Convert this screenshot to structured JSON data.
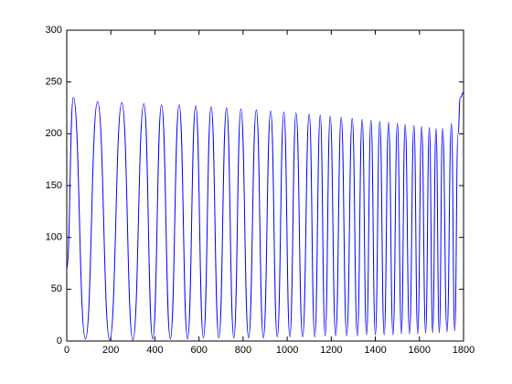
{
  "chart_data": {
    "type": "line",
    "x": [
      0,
      30,
      85,
      140,
      195,
      250,
      300,
      350,
      390,
      430,
      470,
      510,
      548,
      585,
      620,
      655,
      690,
      725,
      758,
      790,
      825,
      860,
      892,
      925,
      955,
      985,
      1012,
      1040,
      1070,
      1100,
      1125,
      1150,
      1172,
      1195,
      1220,
      1245,
      1270,
      1295,
      1318,
      1340,
      1360,
      1380,
      1400,
      1420,
      1440,
      1460,
      1480,
      1500,
      1518,
      1535,
      1555,
      1575,
      1592,
      1610,
      1628,
      1645,
      1660,
      1675,
      1690,
      1705,
      1725,
      1745,
      1760,
      1775,
      1785,
      1800
    ],
    "series": [
      {
        "color": "#0000ff",
        "values": [
          70,
          235,
          2,
          231,
          1,
          230,
          1,
          229,
          2,
          228,
          2,
          228,
          2,
          227,
          3,
          226,
          3,
          225,
          3,
          224,
          3,
          223,
          3,
          222,
          4,
          221,
          4,
          220,
          4,
          219,
          4,
          218,
          5,
          217,
          5,
          216,
          5,
          215,
          5,
          214,
          6,
          213,
          6,
          212,
          6,
          211,
          6,
          210,
          7,
          209,
          7,
          208,
          7,
          207,
          8,
          206,
          8,
          205,
          8,
          205,
          9,
          210,
          10,
          200,
          235,
          240
        ]
      }
    ],
    "xlim": [
      0,
      1800
    ],
    "xticks": [
      0,
      200,
      400,
      600,
      800,
      1000,
      1200,
      1400,
      1600,
      1800
    ],
    "ylim": [
      0,
      300
    ],
    "yticks": [
      0,
      50,
      100,
      150,
      200,
      250,
      300
    ]
  }
}
